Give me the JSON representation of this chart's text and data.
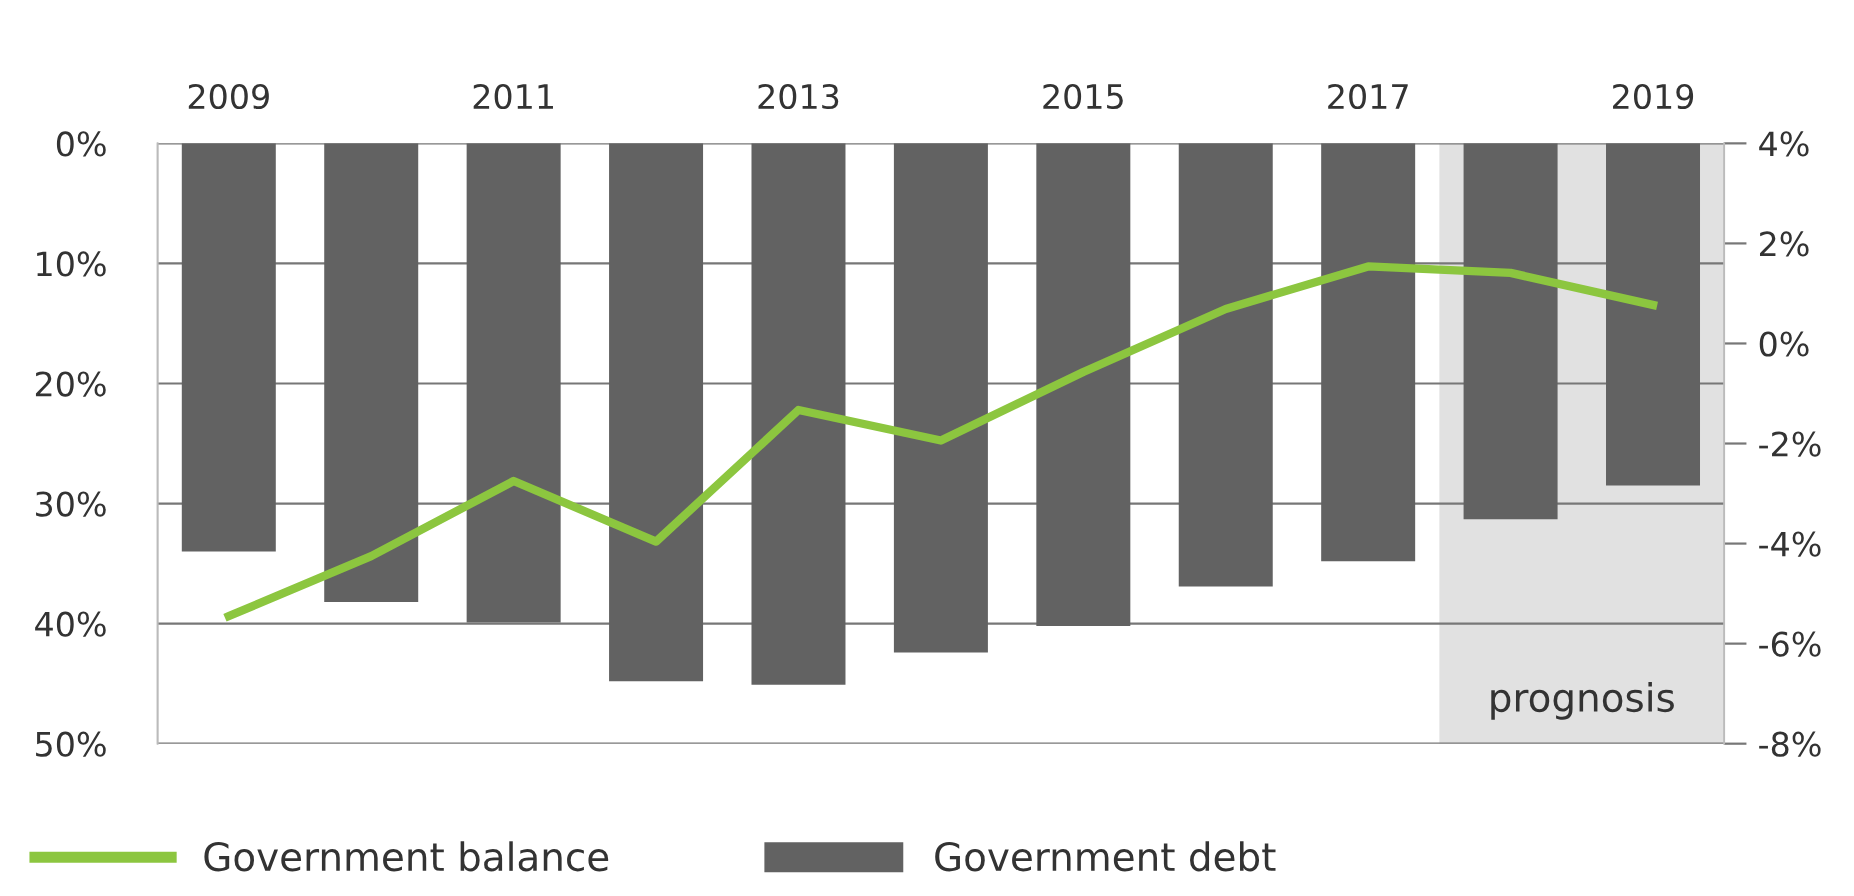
{
  "chart_data": {
    "type": "bar",
    "x": [
      2009,
      2010,
      2011,
      2012,
      2013,
      2014,
      2015,
      2016,
      2017,
      2018,
      2019
    ],
    "xlim": [
      2008.5,
      2019.5
    ],
    "xticks": [
      2009,
      2011,
      2013,
      2015,
      2017,
      2019
    ],
    "ylim": [
      50,
      0
    ],
    "yticks": [
      {
        "value": 0,
        "label": "0%"
      },
      {
        "value": 10,
        "label": "10%"
      },
      {
        "value": 20,
        "label": "20%"
      },
      {
        "value": 30,
        "label": "30%"
      },
      {
        "value": 40,
        "label": "40%"
      },
      {
        "value": 50,
        "label": "50%"
      }
    ],
    "y2lim": [
      -8,
      4
    ],
    "y2ticks": [
      {
        "value": 4,
        "label": "4%"
      },
      {
        "value": 2,
        "label": "2%"
      },
      {
        "value": 0,
        "label": "0%"
      },
      {
        "value": -2,
        "label": "-2%"
      },
      {
        "value": -4,
        "label": "-4%"
      },
      {
        "value": -6,
        "label": "-6%"
      },
      {
        "value": -8,
        "label": "-8%"
      }
    ],
    "series": [
      {
        "name": "Government debt",
        "axis": "y",
        "color": "#626262",
        "values": [
          34.0,
          38.2,
          39.9,
          44.8,
          45.1,
          42.4,
          40.2,
          36.9,
          34.8,
          31.3,
          28.5
        ]
      },
      {
        "name": "Government balance",
        "type": "line",
        "axis": "y2",
        "color": "#8cc63f",
        "values": [
          -5.45,
          -4.25,
          -2.75,
          -3.96,
          -1.33,
          -1.94,
          -0.57,
          0.69,
          1.54,
          1.41,
          0.77
        ]
      }
    ],
    "bands": [
      {
        "axis": "x",
        "from": 2017.5,
        "to": 2019.5,
        "label": "prognosis",
        "color": "#e1e1e1"
      }
    ],
    "grid": "y",
    "legend": "bottom",
    "marker": "none",
    "line_style": "solid"
  }
}
